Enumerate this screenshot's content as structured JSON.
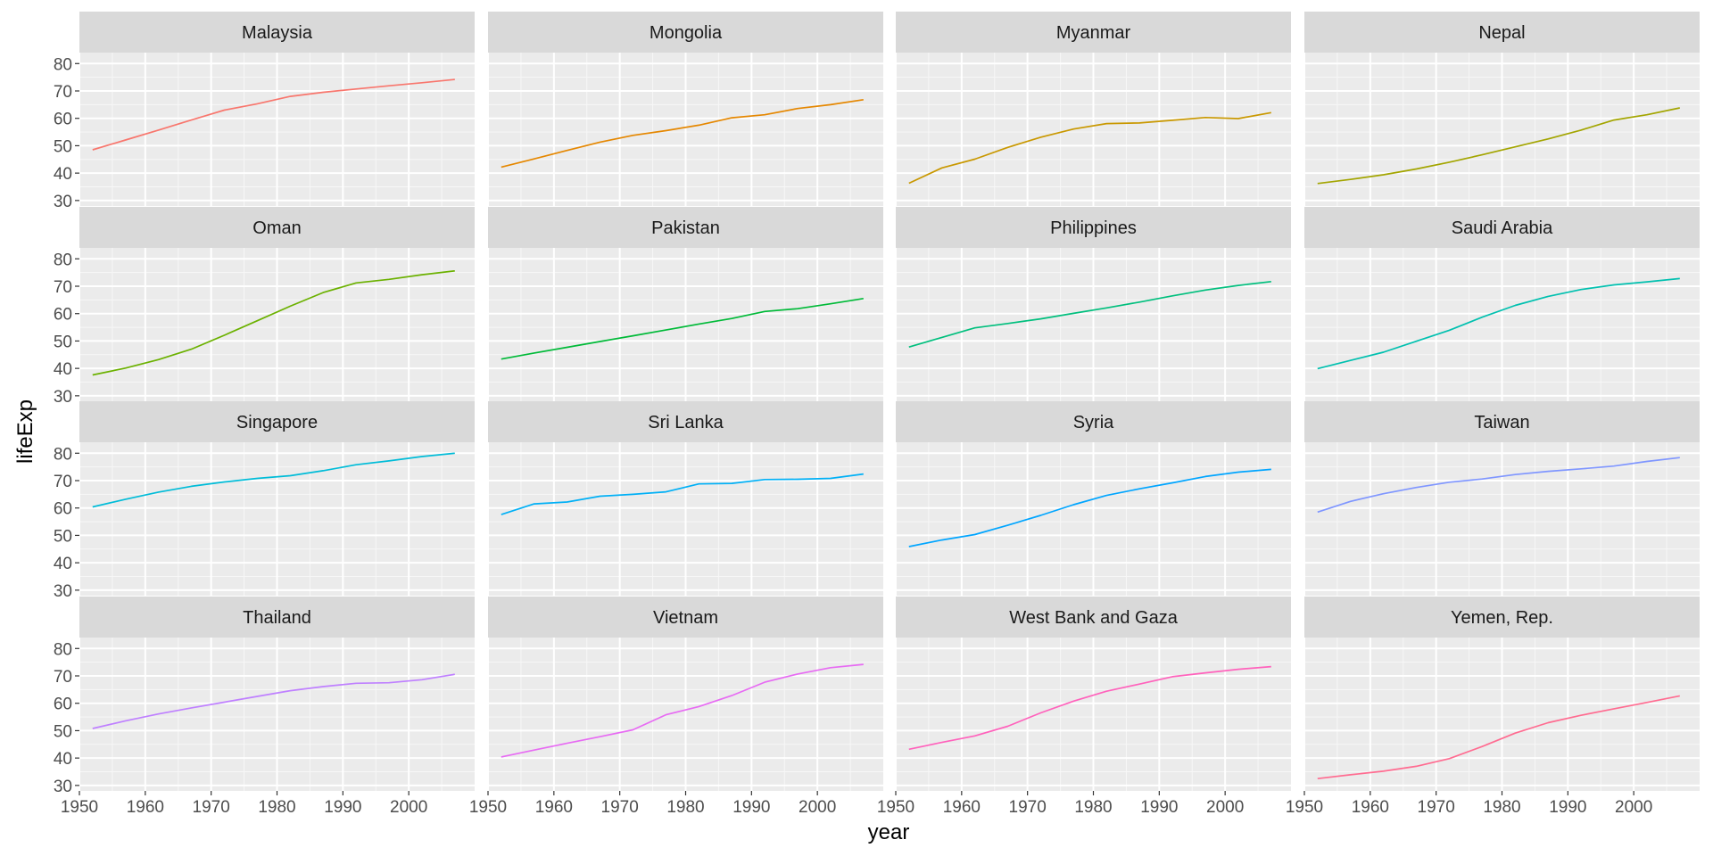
{
  "chart_data": {
    "type": "line",
    "title": "",
    "xlabel": "year",
    "ylabel": "lifeExp",
    "xlim": [
      1950,
      2010
    ],
    "ylim": [
      28,
      84
    ],
    "x_ticks": [
      1950,
      1960,
      1970,
      1980,
      1990,
      2000
    ],
    "y_ticks": [
      30,
      40,
      50,
      60,
      70,
      80
    ],
    "grid": true,
    "legend": "none",
    "x": [
      1952,
      1957,
      1962,
      1967,
      1972,
      1977,
      1982,
      1987,
      1992,
      1997,
      2002,
      2007
    ],
    "panels": [
      {
        "name": "Malaysia",
        "color": "#F8766D",
        "values": [
          48.5,
          52.1,
          55.7,
          59.4,
          63.0,
          65.3,
          68.0,
          69.5,
          70.7,
          71.9,
          73.0,
          74.2
        ]
      },
      {
        "name": "Mongolia",
        "color": "#E58700",
        "values": [
          42.2,
          45.2,
          48.3,
          51.3,
          53.8,
          55.5,
          57.5,
          60.2,
          61.3,
          63.6,
          65.0,
          66.8
        ]
      },
      {
        "name": "Myanmar",
        "color": "#C99800",
        "values": [
          36.3,
          41.9,
          45.1,
          49.4,
          53.1,
          56.1,
          58.1,
          58.3,
          59.3,
          60.3,
          59.9,
          62.1
        ]
      },
      {
        "name": "Nepal",
        "color": "#A3A500",
        "values": [
          36.2,
          37.7,
          39.4,
          41.5,
          44.0,
          46.7,
          49.6,
          52.5,
          55.7,
          59.4,
          61.3,
          63.8
        ]
      },
      {
        "name": "Oman",
        "color": "#6BB100",
        "values": [
          37.6,
          40.1,
          43.2,
          47.0,
          52.1,
          57.4,
          62.7,
          67.7,
          71.2,
          72.5,
          74.2,
          75.6
        ]
      },
      {
        "name": "Pakistan",
        "color": "#00BA38",
        "values": [
          43.4,
          45.6,
          47.7,
          49.8,
          51.9,
          54.0,
          56.2,
          58.2,
          60.8,
          61.8,
          63.6,
          65.5
        ]
      },
      {
        "name": "Philippines",
        "color": "#00BF7D",
        "values": [
          47.8,
          51.3,
          54.8,
          56.4,
          58.1,
          60.1,
          62.1,
          64.2,
          66.5,
          68.6,
          70.3,
          71.7
        ]
      },
      {
        "name": "Saudi Arabia",
        "color": "#00C0AF",
        "values": [
          39.9,
          42.9,
          45.9,
          49.9,
          53.9,
          58.7,
          63.0,
          66.3,
          68.8,
          70.5,
          71.6,
          72.8
        ]
      },
      {
        "name": "Singapore",
        "color": "#00BCD8",
        "values": [
          60.4,
          63.2,
          65.8,
          67.9,
          69.5,
          70.8,
          71.8,
          73.6,
          75.8,
          77.2,
          78.8,
          80.0
        ]
      },
      {
        "name": "Sri Lanka",
        "color": "#00B0F6",
        "values": [
          57.6,
          61.5,
          62.2,
          64.3,
          65.0,
          65.9,
          68.8,
          69.0,
          70.4,
          70.5,
          70.8,
          72.4
        ]
      },
      {
        "name": "Syria",
        "color": "#00A5FF",
        "values": [
          45.9,
          48.3,
          50.3,
          53.7,
          57.3,
          61.2,
          64.6,
          67.0,
          69.2,
          71.5,
          73.1,
          74.1
        ]
      },
      {
        "name": "Taiwan",
        "color": "#7F96FF",
        "values": [
          58.5,
          62.4,
          65.2,
          67.5,
          69.4,
          70.6,
          72.2,
          73.4,
          74.3,
          75.3,
          77.0,
          78.4
        ]
      },
      {
        "name": "Thailand",
        "color": "#BF80FF",
        "values": [
          50.8,
          53.6,
          56.1,
          58.3,
          60.4,
          62.5,
          64.6,
          66.1,
          67.3,
          67.5,
          68.6,
          70.6
        ]
      },
      {
        "name": "Vietnam",
        "color": "#E76BF3",
        "values": [
          40.4,
          42.9,
          45.4,
          47.8,
          50.3,
          55.8,
          58.8,
          62.8,
          67.7,
          70.7,
          73.0,
          74.2
        ]
      },
      {
        "name": "West Bank and Gaza",
        "color": "#FF62BC",
        "values": [
          43.2,
          45.7,
          48.1,
          51.6,
          56.5,
          60.8,
          64.4,
          67.0,
          69.7,
          71.1,
          72.4,
          73.4
        ]
      },
      {
        "name": "Yemen, Rep.",
        "color": "#FF6C91",
        "values": [
          32.5,
          33.9,
          35.2,
          37.0,
          39.8,
          44.2,
          49.1,
          52.9,
          55.6,
          58.0,
          60.3,
          62.7
        ]
      }
    ]
  }
}
